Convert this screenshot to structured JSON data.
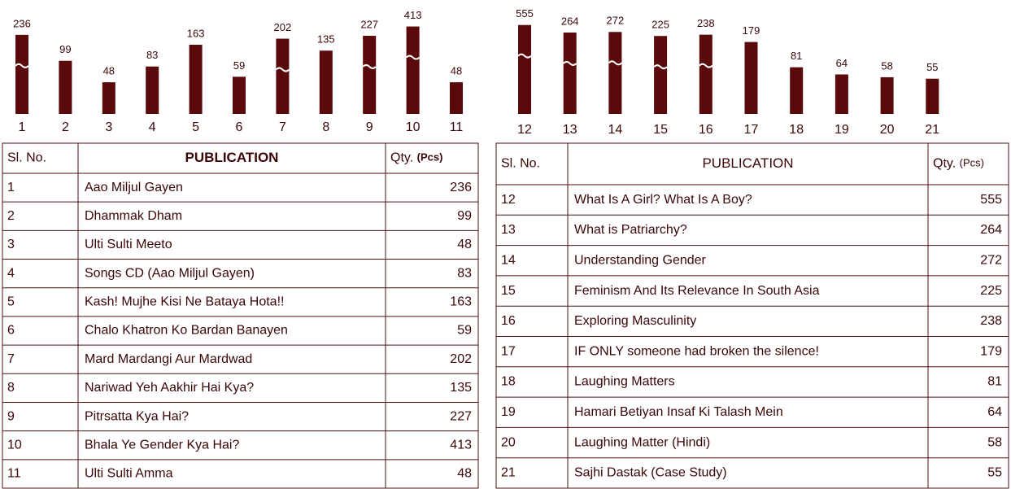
{
  "chart_data": [
    {
      "type": "bar",
      "color": "#5a0a0a",
      "categories": [
        "1",
        "2",
        "3",
        "4",
        "5",
        "6",
        "7",
        "8",
        "9",
        "10",
        "11"
      ],
      "values": [
        236,
        99,
        48,
        83,
        163,
        59,
        202,
        135,
        227,
        413,
        48
      ]
    },
    {
      "type": "bar",
      "color": "#5a0a0a",
      "categories": [
        "12",
        "13",
        "14",
        "15",
        "16",
        "17",
        "18",
        "19",
        "20",
        "21"
      ],
      "values": [
        555,
        264,
        272,
        225,
        238,
        179,
        81,
        64,
        58,
        55
      ]
    }
  ],
  "tables": [
    {
      "headers": [
        "Sl. No.",
        "PUBLICATION",
        "Qty.",
        "(Pcs)"
      ],
      "titles": [
        "Aao Miljul Gayen",
        "Dhammak Dham",
        "Ulti Sulti Meeto",
        "Songs CD (Aao Miljul Gayen)",
        "Kash! Mujhe Kisi Ne Bataya Hota!!",
        "Chalo Khatron Ko Bardan Banayen",
        "Mard Mardangi Aur Mardwad",
        "Nariwad Yeh Aakhir Hai Kya?",
        "Pitrsatta Kya Hai?",
        "Bhala Ye Gender Kya Hai?",
        "Ulti Sulti Amma"
      ]
    },
    {
      "headers": [
        "Sl. No.",
        "PUBLICATION",
        "Qty.",
        "(Pcs)"
      ],
      "titles": [
        "What Is A Girl? What Is A Boy?",
        "What is Patriarchy?",
        "Understanding Gender",
        "Feminism And Its Relevance In South Asia",
        "Exploring Masculinity",
        "IF ONLY someone had broken the silence!",
        "Laughing Matters",
        "Hamari Betiyan Insaf Ki Talash Mein",
        "Laughing Matter (Hindi)",
        "Sajhi Dastak (Case Study)"
      ]
    }
  ]
}
